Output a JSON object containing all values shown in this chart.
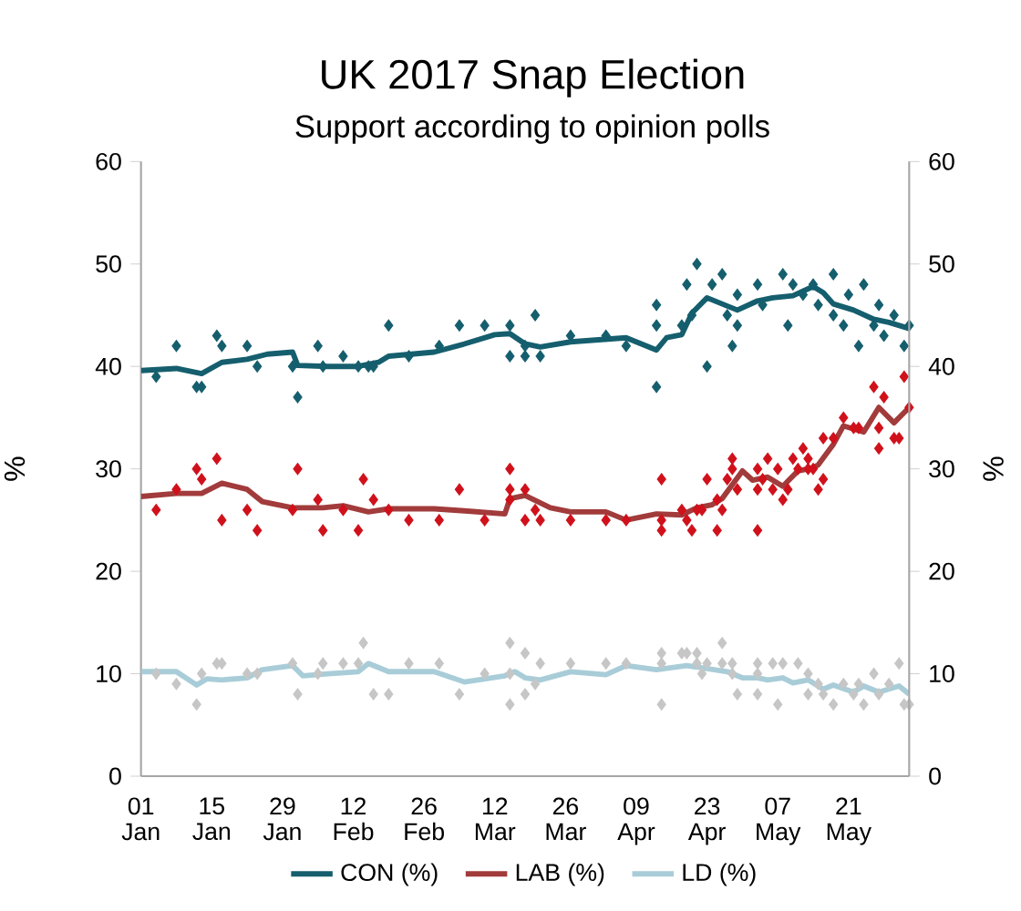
{
  "chart_data": {
    "type": "line",
    "title": "UK 2017 Snap Election",
    "subtitle": "Support according to opinion polls",
    "ylabel": "%",
    "y2label": "%",
    "xlim": [
      "2017-01-01",
      "2017-06-02"
    ],
    "xticks": [
      {
        "value": "2017-01-01",
        "label": "01 Jan"
      },
      {
        "value": "2017-01-15",
        "label": "15 Jan"
      },
      {
        "value": "2017-01-29",
        "label": "29 Jan"
      },
      {
        "value": "2017-02-12",
        "label": "12 Feb"
      },
      {
        "value": "2017-02-26",
        "label": "26 Feb"
      },
      {
        "value": "2017-03-12",
        "label": "12 Mar"
      },
      {
        "value": "2017-03-26",
        "label": "26 Mar"
      },
      {
        "value": "2017-04-09",
        "label": "09 Apr"
      },
      {
        "value": "2017-04-23",
        "label": "23 Apr"
      },
      {
        "value": "2017-05-07",
        "label": "07 May"
      },
      {
        "value": "2017-05-21",
        "label": "21 May"
      }
    ],
    "ylim": [
      0,
      60
    ],
    "yticks": [
      0,
      10,
      20,
      30,
      40,
      50,
      60
    ],
    "y2lim": [
      0,
      60
    ],
    "y2ticks": [
      0,
      10,
      20,
      30,
      40,
      50,
      60
    ],
    "legend": "bottom",
    "marker": "diamond",
    "series": [
      {
        "type": "scatter",
        "color": "#155e6e",
        "x": [
          "2017-01-04",
          "2017-01-08",
          "2017-01-12",
          "2017-01-13",
          "2017-01-16",
          "2017-01-17",
          "2017-01-22",
          "2017-01-24",
          "2017-01-31",
          "2017-02-01",
          "2017-02-05",
          "2017-02-06",
          "2017-02-10",
          "2017-02-13",
          "2017-02-15",
          "2017-02-16",
          "2017-02-19",
          "2017-02-23",
          "2017-03-01",
          "2017-03-05",
          "2017-03-10",
          "2017-03-15",
          "2017-03-15",
          "2017-03-18",
          "2017-03-18",
          "2017-03-20",
          "2017-03-21",
          "2017-03-27",
          "2017-04-03",
          "2017-04-07",
          "2017-04-13",
          "2017-04-13",
          "2017-04-13",
          "2017-04-18",
          "2017-04-19",
          "2017-04-20",
          "2017-04-21",
          "2017-04-23",
          "2017-04-24",
          "2017-04-26",
          "2017-04-27",
          "2017-04-28",
          "2017-04-29",
          "2017-04-29",
          "2017-05-03",
          "2017-05-04",
          "2017-05-08",
          "2017-05-09",
          "2017-05-10",
          "2017-05-12",
          "2017-05-14",
          "2017-05-15",
          "2017-05-18",
          "2017-05-18",
          "2017-05-20",
          "2017-05-21",
          "2017-05-23",
          "2017-05-24",
          "2017-05-26",
          "2017-05-27",
          "2017-05-28",
          "2017-05-30",
          "2017-06-01",
          "2017-06-02"
        ],
        "values": [
          39,
          42,
          38,
          38,
          43,
          42,
          42,
          40,
          40,
          37,
          42,
          40,
          41,
          40,
          40,
          40,
          44,
          41,
          42,
          44,
          44,
          44,
          41,
          41,
          42,
          45,
          41,
          43,
          43,
          42,
          46,
          44,
          38,
          44,
          48,
          45,
          50,
          40,
          48,
          49,
          45,
          42,
          44,
          47,
          48,
          46,
          49,
          44,
          48,
          47,
          48,
          46,
          49,
          45,
          44,
          47,
          42,
          48,
          44,
          46,
          43,
          45,
          42,
          44
        ]
      },
      {
        "type": "scatter",
        "color": "#d0111b",
        "x": [
          "2017-01-04",
          "2017-01-08",
          "2017-01-12",
          "2017-01-13",
          "2017-01-16",
          "2017-01-17",
          "2017-01-22",
          "2017-01-24",
          "2017-01-31",
          "2017-02-01",
          "2017-02-05",
          "2017-02-06",
          "2017-02-10",
          "2017-02-13",
          "2017-02-14",
          "2017-02-16",
          "2017-02-19",
          "2017-02-23",
          "2017-03-01",
          "2017-03-05",
          "2017-03-10",
          "2017-03-15",
          "2017-03-15",
          "2017-03-15",
          "2017-03-18",
          "2017-03-18",
          "2017-03-20",
          "2017-03-21",
          "2017-03-27",
          "2017-04-03",
          "2017-04-07",
          "2017-04-14",
          "2017-04-14",
          "2017-04-14",
          "2017-04-18",
          "2017-04-19",
          "2017-04-20",
          "2017-04-21",
          "2017-04-22",
          "2017-04-23",
          "2017-04-25",
          "2017-04-25",
          "2017-04-26",
          "2017-04-27",
          "2017-04-28",
          "2017-04-28",
          "2017-04-29",
          "2017-05-03",
          "2017-05-03",
          "2017-05-03",
          "2017-05-04",
          "2017-05-05",
          "2017-05-06",
          "2017-05-07",
          "2017-05-08",
          "2017-05-09",
          "2017-05-10",
          "2017-05-11",
          "2017-05-12",
          "2017-05-13",
          "2017-05-13",
          "2017-05-14",
          "2017-05-15",
          "2017-05-16",
          "2017-05-16",
          "2017-05-18",
          "2017-05-20",
          "2017-05-22",
          "2017-05-23",
          "2017-05-26",
          "2017-05-27",
          "2017-05-27",
          "2017-05-28",
          "2017-05-30",
          "2017-05-31",
          "2017-06-01",
          "2017-06-02"
        ],
        "values": [
          26,
          28,
          30,
          29,
          31,
          25,
          26,
          24,
          26,
          30,
          27,
          24,
          26,
          24,
          29,
          27,
          26,
          25,
          25,
          28,
          25,
          30,
          27,
          28,
          28,
          25,
          26,
          25,
          25,
          25,
          25,
          29,
          25,
          24,
          26,
          25,
          24,
          26,
          26,
          29,
          24,
          27,
          26,
          29,
          31,
          30,
          28,
          24,
          28,
          30,
          29,
          31,
          28,
          30,
          27,
          28,
          31,
          30,
          32,
          30,
          31,
          30,
          28,
          29,
          33,
          33,
          35,
          34,
          34,
          38,
          34,
          32,
          37,
          33,
          33,
          39,
          36
        ]
      },
      {
        "type": "scatter",
        "color": "#c6c6c6",
        "x": [
          "2017-01-04",
          "2017-01-08",
          "2017-01-12",
          "2017-01-13",
          "2017-01-16",
          "2017-01-17",
          "2017-01-22",
          "2017-01-24",
          "2017-01-31",
          "2017-02-01",
          "2017-02-05",
          "2017-02-06",
          "2017-02-10",
          "2017-02-13",
          "2017-02-14",
          "2017-02-16",
          "2017-02-19",
          "2017-02-23",
          "2017-03-01",
          "2017-03-05",
          "2017-03-10",
          "2017-03-15",
          "2017-03-15",
          "2017-03-15",
          "2017-03-18",
          "2017-03-18",
          "2017-03-20",
          "2017-03-21",
          "2017-03-27",
          "2017-04-03",
          "2017-04-07",
          "2017-04-14",
          "2017-04-14",
          "2017-04-14",
          "2017-04-18",
          "2017-04-19",
          "2017-04-21",
          "2017-04-21",
          "2017-04-22",
          "2017-04-23",
          "2017-04-26",
          "2017-04-26",
          "2017-04-28",
          "2017-04-28",
          "2017-04-29",
          "2017-05-03",
          "2017-05-03",
          "2017-05-03",
          "2017-05-06",
          "2017-05-07",
          "2017-05-08",
          "2017-05-11",
          "2017-05-13",
          "2017-05-13",
          "2017-05-15",
          "2017-05-16",
          "2017-05-18",
          "2017-05-20",
          "2017-05-22",
          "2017-05-23",
          "2017-05-24",
          "2017-05-26",
          "2017-05-27",
          "2017-05-29",
          "2017-05-31",
          "2017-06-01",
          "2017-06-02"
        ],
        "values": [
          10,
          9,
          7,
          10,
          11,
          11,
          10,
          10,
          11,
          8,
          10,
          11,
          11,
          11,
          13,
          8,
          8,
          11,
          11,
          8,
          10,
          13,
          10,
          7,
          12,
          8,
          9,
          11,
          11,
          11,
          11,
          12,
          11,
          7,
          12,
          12,
          12,
          11,
          10,
          11,
          13,
          11,
          10,
          11,
          8,
          11,
          8,
          10,
          11,
          7,
          11,
          11,
          10,
          8,
          9,
          8,
          7,
          9,
          8,
          9,
          7,
          10,
          8,
          9,
          11,
          7,
          7
        ]
      },
      {
        "marker": "none",
        "name": "CON (%)",
        "color": "#155e6e",
        "x": [
          "2017-01-01",
          "2017-01-08",
          "2017-01-13",
          "2017-01-17",
          "2017-01-22",
          "2017-01-26",
          "2017-01-31",
          "2017-02-01",
          "2017-02-07",
          "2017-02-13",
          "2017-02-17",
          "2017-02-19",
          "2017-02-28",
          "2017-03-06",
          "2017-03-12",
          "2017-03-15",
          "2017-03-18",
          "2017-03-21",
          "2017-03-27",
          "2017-04-07",
          "2017-04-13",
          "2017-04-15",
          "2017-04-18",
          "2017-04-20",
          "2017-04-23",
          "2017-04-26",
          "2017-04-29",
          "2017-05-03",
          "2017-05-06",
          "2017-05-10",
          "2017-05-14",
          "2017-05-16",
          "2017-05-18",
          "2017-05-22",
          "2017-05-26",
          "2017-05-29",
          "2017-06-02"
        ],
        "values": [
          39.6,
          39.8,
          39.3,
          40.4,
          40.7,
          41.2,
          41.4,
          40.1,
          40.0,
          40.0,
          40.4,
          41.0,
          41.4,
          42.2,
          43.1,
          43.2,
          42.2,
          41.9,
          42.4,
          42.8,
          41.6,
          42.8,
          43.1,
          45.2,
          46.7,
          46.1,
          45.5,
          46.4,
          46.7,
          46.9,
          47.8,
          47.2,
          46.1,
          45.5,
          44.6,
          44.3,
          43.7
        ]
      },
      {
        "marker": "none",
        "name": "LAB (%)",
        "color": "#a23b3b",
        "x": [
          "2017-01-01",
          "2017-01-08",
          "2017-01-13",
          "2017-01-17",
          "2017-01-22",
          "2017-01-25",
          "2017-01-31",
          "2017-02-06",
          "2017-02-10",
          "2017-02-15",
          "2017-02-19",
          "2017-02-28",
          "2017-03-06",
          "2017-03-14",
          "2017-03-15",
          "2017-03-18",
          "2017-03-23",
          "2017-03-27",
          "2017-04-03",
          "2017-04-07",
          "2017-04-13",
          "2017-04-18",
          "2017-04-21",
          "2017-04-24",
          "2017-04-26",
          "2017-04-30",
          "2017-05-02",
          "2017-05-05",
          "2017-05-08",
          "2017-05-11",
          "2017-05-14",
          "2017-05-15",
          "2017-05-18",
          "2017-05-20",
          "2017-05-24",
          "2017-05-27",
          "2017-05-30",
          "2017-06-02"
        ],
        "values": [
          27.3,
          27.6,
          27.6,
          28.6,
          28.0,
          26.8,
          26.2,
          26.2,
          26.4,
          25.8,
          26.1,
          26.1,
          25.9,
          25.6,
          27.1,
          27.4,
          26.2,
          25.8,
          25.8,
          25.0,
          25.6,
          25.5,
          26.2,
          26.5,
          27.1,
          29.8,
          28.9,
          29.2,
          28.3,
          29.8,
          30.1,
          30.4,
          32.4,
          34.2,
          33.6,
          36.0,
          34.5,
          36.0
        ]
      },
      {
        "marker": "none",
        "name": "LD (%)",
        "color": "#a9cdd8",
        "x": [
          "2017-01-01",
          "2017-01-08",
          "2017-01-12",
          "2017-01-14",
          "2017-01-17",
          "2017-01-22",
          "2017-01-25",
          "2017-01-31",
          "2017-02-02",
          "2017-02-07",
          "2017-02-13",
          "2017-02-15",
          "2017-02-19",
          "2017-02-28",
          "2017-03-06",
          "2017-03-14",
          "2017-03-16",
          "2017-03-18",
          "2017-03-21",
          "2017-03-27",
          "2017-04-03",
          "2017-04-07",
          "2017-04-13",
          "2017-04-19",
          "2017-04-23",
          "2017-04-27",
          "2017-04-30",
          "2017-05-03",
          "2017-05-05",
          "2017-05-08",
          "2017-05-10",
          "2017-05-13",
          "2017-05-16",
          "2017-05-18",
          "2017-05-22",
          "2017-05-24",
          "2017-05-27",
          "2017-05-31",
          "2017-06-02"
        ],
        "values": [
          10.2,
          10.2,
          8.9,
          9.5,
          9.4,
          9.6,
          10.4,
          10.8,
          9.8,
          10.0,
          10.2,
          11.0,
          10.2,
          10.2,
          9.2,
          9.8,
          10.2,
          9.6,
          9.4,
          10.2,
          9.9,
          10.8,
          10.4,
          10.8,
          10.5,
          10.2,
          9.6,
          9.6,
          9.4,
          9.6,
          9.1,
          9.4,
          8.5,
          8.9,
          8.2,
          8.8,
          8.2,
          8.8,
          8.0
        ]
      }
    ]
  }
}
